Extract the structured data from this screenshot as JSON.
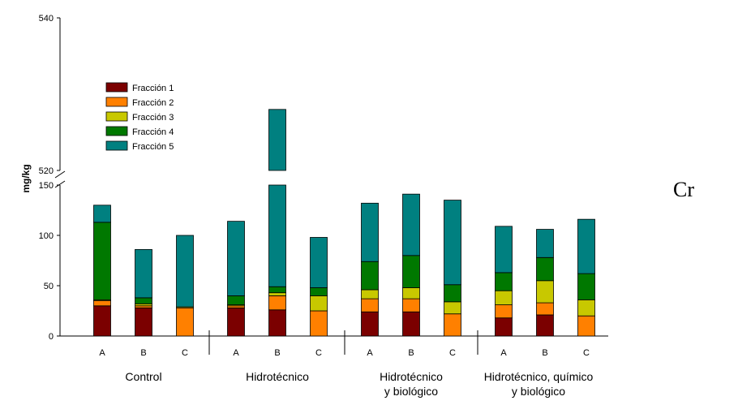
{
  "chart_data": {
    "type": "bar",
    "stacked": true,
    "element": "Cr",
    "ylabel": "mg/kg",
    "y_break": {
      "lower": [
        0,
        150
      ],
      "upper": [
        520,
        540
      ]
    },
    "y_ticks_lower": [
      "0",
      "50",
      "100",
      "150"
    ],
    "y_ticks_upper": [
      "520",
      "540"
    ],
    "legend_position": "top-left",
    "groups": [
      {
        "label_lines": [
          "Control"
        ],
        "categories": [
          "A",
          "B",
          "C"
        ]
      },
      {
        "label_lines": [
          "Hidrotécnico"
        ],
        "categories": [
          "A",
          "B",
          "C"
        ]
      },
      {
        "label_lines": [
          "Hidrotécnico",
          "y biológico"
        ],
        "categories": [
          "A",
          "B",
          "C"
        ]
      },
      {
        "label_lines": [
          "Hidrotécnico, químico",
          "y biológico"
        ],
        "categories": [
          "A",
          "B",
          "C"
        ]
      }
    ],
    "series": [
      {
        "name": "Fracción 1",
        "color": "#7b0000",
        "values": [
          30,
          28,
          0,
          28,
          26,
          0,
          24,
          24,
          0,
          18,
          21,
          0
        ]
      },
      {
        "name": "Fracción 2",
        "color": "#ff8000",
        "values": [
          5,
          2,
          28,
          2,
          14,
          25,
          13,
          13,
          22,
          13,
          12,
          20
        ]
      },
      {
        "name": "Fracción 3",
        "color": "#c8c800",
        "values": [
          1,
          2,
          1,
          1,
          3,
          15,
          9,
          11,
          12,
          14,
          22,
          16
        ]
      },
      {
        "name": "Fracción 4",
        "color": "#007800",
        "values": [
          77,
          6,
          0,
          9,
          6,
          8,
          28,
          32,
          17,
          18,
          23,
          26
        ]
      },
      {
        "name": "Fracción 5",
        "color": "#008080",
        "values": [
          17,
          48,
          71,
          74,
          479,
          50,
          58,
          61,
          84,
          46,
          28,
          54
        ]
      }
    ]
  }
}
